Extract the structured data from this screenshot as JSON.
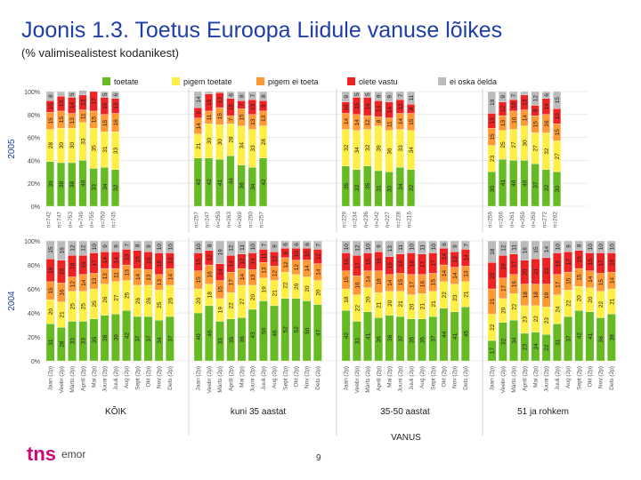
{
  "title": "Joonis 1.3. Toetus Euroopa Liidule vanuse lõikes",
  "subtitle": "(% valimisealistest kodanikest)",
  "page_number": "9",
  "logo": {
    "brand": "tns",
    "suffix": "emor"
  },
  "colors": {
    "toetate": "#66bb22",
    "pigem_toetate": "#ffee44",
    "pigem_ei_toeta": "#ff9933",
    "olete_vastu": "#ee2222",
    "ei_oska_oelda": "#bbbbbb"
  },
  "chart_data": {
    "type": "bar",
    "stacked": true,
    "xlabel": "VANUS",
    "groups": [
      "KÕIK",
      "kuni 35 aastat",
      "35-50 aastat",
      "51 ja rohkem"
    ],
    "legend": [
      "toetate",
      "pigem toetate",
      "pigem ei toeta",
      "olete vastu",
      "ei oska öelda"
    ],
    "ylim": [
      0,
      100
    ],
    "yticks": [
      "0%",
      "20%",
      "40%",
      "60%",
      "80%",
      "100%"
    ],
    "panels": [
      {
        "row_label": "2005",
        "groups": [
          {
            "n": [
              "n=742",
              "n=747",
              "n=753",
              "n=749",
              "n=755",
              "n=750",
              "n=745"
            ],
            "series": [
              [
                39,
                38,
                38,
                40,
                33,
                34,
                32
              ],
              [
                28,
                30,
                30,
                33,
                35,
                31,
                33
              ],
              [
                15,
                15,
                13,
                11,
                15,
                15,
                16
              ],
              [
                10,
                13,
                14,
                13,
                17,
                15,
                13
              ],
              [
                8,
                4,
                5,
                4,
                0,
                5,
                6
              ]
            ]
          },
          {
            "n": [
              "n=257",
              "n=247",
              "n=250",
              "n=263",
              "n=269",
              "n=250",
              "n=257"
            ],
            "series": [
              [
                42,
                42,
                41,
                44,
                36,
                34,
                42
              ],
              [
                21,
                30,
                30,
                28,
                34,
                33,
                28
              ],
              [
                14,
                11,
                15,
                7,
                15,
                13,
                13
              ],
              [
                9,
                15,
                13,
                15,
                7,
                13,
                9
              ],
              [
                14,
                2,
                1,
                6,
                8,
                7,
                8
              ]
            ]
          },
          {
            "n": [
              "n=229",
              "n=234",
              "n=236",
              "n=242",
              "n=227",
              "n=228",
              "n=216"
            ],
            "series": [
              [
                35,
                32,
                35,
                31,
                30,
                34,
                32
              ],
              [
                32,
                34,
                32,
                39,
                36,
                33,
                34
              ],
              [
                14,
                14,
                12,
                8,
                11,
                14,
                15
              ],
              [
                10,
                15,
                16,
                14,
                14,
                12,
                8
              ],
              [
                9,
                5,
                5,
                8,
                9,
                7,
                11
              ]
            ]
          },
          {
            "n": [
              "n=256",
              "n=266",
              "n=261",
              "n=259",
              "n=259",
              "n=272",
              "n=262"
            ],
            "series": [
              [
                30,
                41,
                40,
                40,
                37,
                32,
                30
              ],
              [
                23,
                25,
                27,
                30,
                27,
                32,
                27
              ],
              [
                15,
                13,
                16,
                14,
                15,
                16,
                15
              ],
              [
                13,
                12,
                10,
                13,
                9,
                14,
                13
              ],
              [
                19,
                9,
                7,
                3,
                12,
                6,
                15
              ]
            ]
          }
        ]
      },
      {
        "row_label": "2004",
        "months": [
          "Jaan (2p)",
          "Veebr (2p)",
          "Märts (2p)",
          "Aprill (2p)",
          "Mai (2p)",
          "Juuni (2p)",
          "Juuli (2p)",
          "Aug (2p)",
          "Sept (2p)",
          "Okt (2p)",
          "Nov (2p)",
          "Dets (2p)"
        ],
        "months_short": [
          "Jaan (2p)",
          "Veebr (2p)",
          "Märts (2p)",
          "Aprill (2p)",
          "Mai (2p)",
          "Juuni (2p)",
          "Juuli (2p)",
          "Aug (2p)",
          "Sept (2p)",
          "Okt (2p)",
          "Nov (2p)",
          "Dets (2p)"
        ],
        "groups": [
          {
            "series": [
              [
                31,
                28,
                33,
                33,
                35,
                38,
                39,
                42,
                37,
                37,
                34,
                37
              ],
              [
                20,
                21,
                25,
                25,
                25,
                26,
                27,
                25,
                26,
                26,
                25,
                26
              ],
              [
                15,
                16,
                12,
                14,
                13,
                13,
                11,
                13,
                14,
                13,
                13,
                14
              ],
              [
                19,
                19,
                18,
                16,
                17,
                14,
                14,
                13,
                15,
                15,
                18,
                13
              ],
              [
                15,
                16,
                12,
                12,
                10,
                9,
                9,
                7,
                8,
                9,
                10,
                10
              ]
            ]
          },
          {
            "series": [
              [
                40,
                46,
                33,
                35,
                36,
                43,
                50,
                46,
                52,
                52,
                50,
                47
              ],
              [
                20,
                18,
                19,
                22,
                27,
                20,
                19,
                21,
                22,
                20,
                20,
                20
              ],
              [
                15,
                16,
                15,
                17,
                14,
                13,
                13,
                12,
                12,
                12,
                14,
                14
              ],
              [
                15,
                12,
                14,
                14,
                12,
                14,
                11,
                12,
                8,
                10,
                10,
                12
              ],
              [
                10,
                8,
                19,
                12,
                11,
                10,
                7,
                9,
                6,
                6,
                6,
                7
              ]
            ]
          },
          {
            "series": [
              [
                42,
                33,
                41,
                36,
                38,
                37,
                35,
                35,
                37,
                44,
                41,
                45
              ],
              [
                18,
                22,
                20,
                21,
                20,
                21,
                20,
                21,
                21,
                22,
                23,
                21
              ],
              [
                15,
                16,
                14,
                18,
                14,
                15,
                17,
                16,
                15,
                14,
                14,
                13
              ],
              [
                15,
                17,
                15,
                16,
                15,
                16,
                18,
                17,
                17,
                14,
                13,
                14
              ],
              [
                10,
                12,
                10,
                9,
                13,
                11,
                10,
                11,
                10,
                6,
                9,
                7
              ]
            ]
          },
          {
            "series": [
              [
                17,
                32,
                34,
                23,
                24,
                22,
                31,
                37,
                42,
                41,
                36,
                39
              ],
              [
                22,
                20,
                22,
                23,
                22,
                23,
                24,
                22,
                20,
                20,
                22,
                21
              ],
              [
                21,
                17,
                16,
                18,
                18,
                19,
                17,
                15,
                15,
                14,
                15,
                14
              ],
              [
                22,
                19,
                17,
                20,
                21,
                22,
                18,
                17,
                15,
                15,
                17,
                16
              ],
              [
                18,
                12,
                11,
                16,
                15,
                14,
                10,
                9,
                8,
                10,
                10,
                10
              ]
            ]
          }
        ]
      }
    ]
  }
}
